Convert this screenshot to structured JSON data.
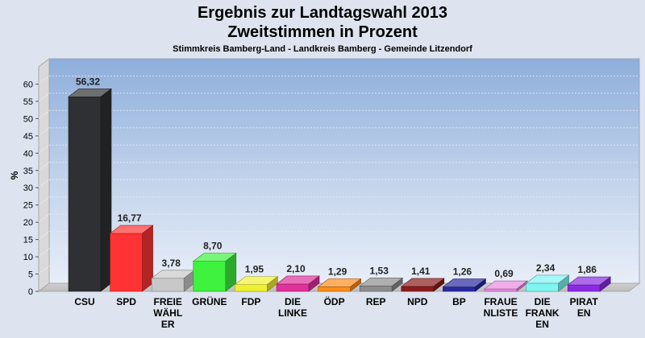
{
  "title_line1": "Ergebnis zur Landtagswahl 2013",
  "title_line2": "Zweitstimmen in Prozent",
  "subtitle": "Stimmkreis Bamberg-Land - Landkreis Bamberg - Gemeinde Litzendorf",
  "chart_data": {
    "type": "bar",
    "title": "Ergebnis zur Landtagswahl 2013 Zweitstimmen in Prozent",
    "subtitle": "Stimmkreis Bamberg-Land - Landkreis Bamberg - Gemeinde Litzendorf",
    "ylabel": "%",
    "xlabel": "",
    "ylim": [
      0,
      65
    ],
    "yticks": [
      0,
      5,
      10,
      15,
      20,
      25,
      30,
      35,
      40,
      45,
      50,
      55,
      60
    ],
    "grid": true,
    "categories": [
      "CSU",
      "SPD",
      "FREIE WÄHLER",
      "GRÜNE",
      "FDP",
      "DIE LINKE",
      "ÖDP",
      "REP",
      "NPD",
      "BP",
      "FRAUENLISTE",
      "DIE FRANKEN",
      "PIRATEN"
    ],
    "category_label_lines": [
      [
        "CSU"
      ],
      [
        "SPD"
      ],
      [
        "FREIE",
        "WÄHL",
        "ER"
      ],
      [
        "GRÜNE"
      ],
      [
        "FDP"
      ],
      [
        "DIE",
        "LINKE"
      ],
      [
        "ÖDP"
      ],
      [
        "REP"
      ],
      [
        "NPD"
      ],
      [
        "BP"
      ],
      [
        "FRAUE",
        "NLISTE"
      ],
      [
        "DIE",
        "FRANK",
        "EN"
      ],
      [
        "PIRAT",
        "EN"
      ]
    ],
    "values": [
      56.32,
      16.77,
      3.78,
      8.7,
      1.95,
      2.1,
      1.29,
      1.53,
      1.41,
      1.26,
      0.69,
      2.34,
      1.86
    ],
    "value_labels": [
      "56,32",
      "16,77",
      "3,78",
      "8,70",
      "1,95",
      "2,10",
      "1,29",
      "1,53",
      "1,41",
      "1,26",
      "0,69",
      "2,34",
      "1,86"
    ],
    "colors": [
      "#2e3033",
      "#ff3333",
      "#c8c8c8",
      "#3ef23e",
      "#f0f033",
      "#e0309a",
      "#ff8c1a",
      "#8c8c8c",
      "#8b1c1c",
      "#2828a0",
      "#e88be0",
      "#7ff5f0",
      "#8a2be2"
    ]
  }
}
